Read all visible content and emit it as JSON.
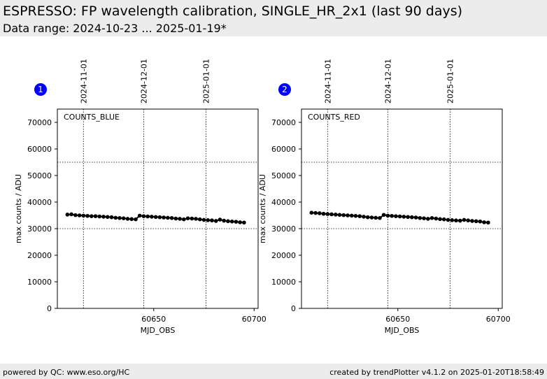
{
  "header": {
    "title": "ESPRESSO: FP wavelength calibration, SINGLE_HR_2x1 (last 90 days)",
    "subtitle": "Data range: 2024-10-23 ... 2025-01-19*"
  },
  "footer": {
    "left": "powered by QC: www.eso.org/HC",
    "right": "created by trendPlotter v4.1.2 on 2025-01-20T18:58:49"
  },
  "colors": {
    "marker": "#000000",
    "badge": "#0000ff",
    "header_bg": "#ececec"
  },
  "chart_data": [
    {
      "type": "scatter",
      "badge": "1",
      "label": "COUNTS_BLUE",
      "xlabel": "MJD_OBS",
      "ylabel": "max counts / ADU",
      "xlim": [
        60602,
        60702
      ],
      "ylim": [
        0,
        75000
      ],
      "xticks": [
        60650,
        60700
      ],
      "yticks": [
        0,
        10000,
        20000,
        30000,
        40000,
        50000,
        60000,
        70000
      ],
      "hlines": [
        30000,
        55000
      ],
      "date_lines": [
        {
          "mjd": 60615,
          "label": "2024-11-01"
        },
        {
          "mjd": 60645,
          "label": "2024-12-01"
        },
        {
          "mjd": 60676,
          "label": "2025-01-01"
        }
      ],
      "x": [
        60607,
        60609,
        60611,
        60613,
        60615,
        60617,
        60619,
        60621,
        60623,
        60625,
        60627,
        60629,
        60631,
        60633,
        60635,
        60637,
        60639,
        60641,
        60643,
        60645,
        60647,
        60649,
        60651,
        60653,
        60655,
        60657,
        60659,
        60661,
        60663,
        60665,
        60667,
        60669,
        60671,
        60673,
        60675,
        60677,
        60679,
        60681,
        60683,
        60685,
        60687,
        60689,
        60691,
        60693,
        60695
      ],
      "y": [
        35300,
        35400,
        35100,
        35000,
        34900,
        34800,
        34700,
        34700,
        34600,
        34500,
        34400,
        34300,
        34100,
        34000,
        33900,
        33700,
        33600,
        33500,
        34900,
        34700,
        34600,
        34500,
        34400,
        34300,
        34200,
        34100,
        34000,
        33800,
        33700,
        33500,
        33900,
        33800,
        33700,
        33500,
        33300,
        33200,
        33100,
        32900,
        33400,
        33000,
        32800,
        32700,
        32600,
        32400,
        32300
      ]
    },
    {
      "type": "scatter",
      "badge": "2",
      "label": "COUNTS_RED",
      "xlabel": "MJD_OBS",
      "ylabel": "max counts / ADU",
      "xlim": [
        60602,
        60702
      ],
      "ylim": [
        0,
        75000
      ],
      "xticks": [
        60650,
        60700
      ],
      "yticks": [
        0,
        10000,
        20000,
        30000,
        40000,
        50000,
        60000,
        70000
      ],
      "hlines": [
        30000,
        55000
      ],
      "date_lines": [
        {
          "mjd": 60615,
          "label": "2024-11-01"
        },
        {
          "mjd": 60645,
          "label": "2024-12-01"
        },
        {
          "mjd": 60676,
          "label": "2025-01-01"
        }
      ],
      "x": [
        60607,
        60609,
        60611,
        60613,
        60615,
        60617,
        60619,
        60621,
        60623,
        60625,
        60627,
        60629,
        60631,
        60633,
        60635,
        60637,
        60639,
        60641,
        60643,
        60645,
        60647,
        60649,
        60651,
        60653,
        60655,
        60657,
        60659,
        60661,
        60663,
        60665,
        60667,
        60669,
        60671,
        60673,
        60675,
        60677,
        60679,
        60681,
        60683,
        60685,
        60687,
        60689,
        60691,
        60693,
        60695
      ],
      "y": [
        36000,
        35900,
        35800,
        35600,
        35500,
        35400,
        35300,
        35200,
        35100,
        35000,
        34900,
        34800,
        34700,
        34500,
        34300,
        34200,
        34100,
        34000,
        35200,
        34900,
        34800,
        34700,
        34600,
        34500,
        34400,
        34300,
        34200,
        34000,
        33900,
        33700,
        34000,
        33800,
        33600,
        33500,
        33300,
        33200,
        33100,
        33000,
        33300,
        33100,
        32900,
        32800,
        32700,
        32400,
        32300
      ]
    }
  ]
}
